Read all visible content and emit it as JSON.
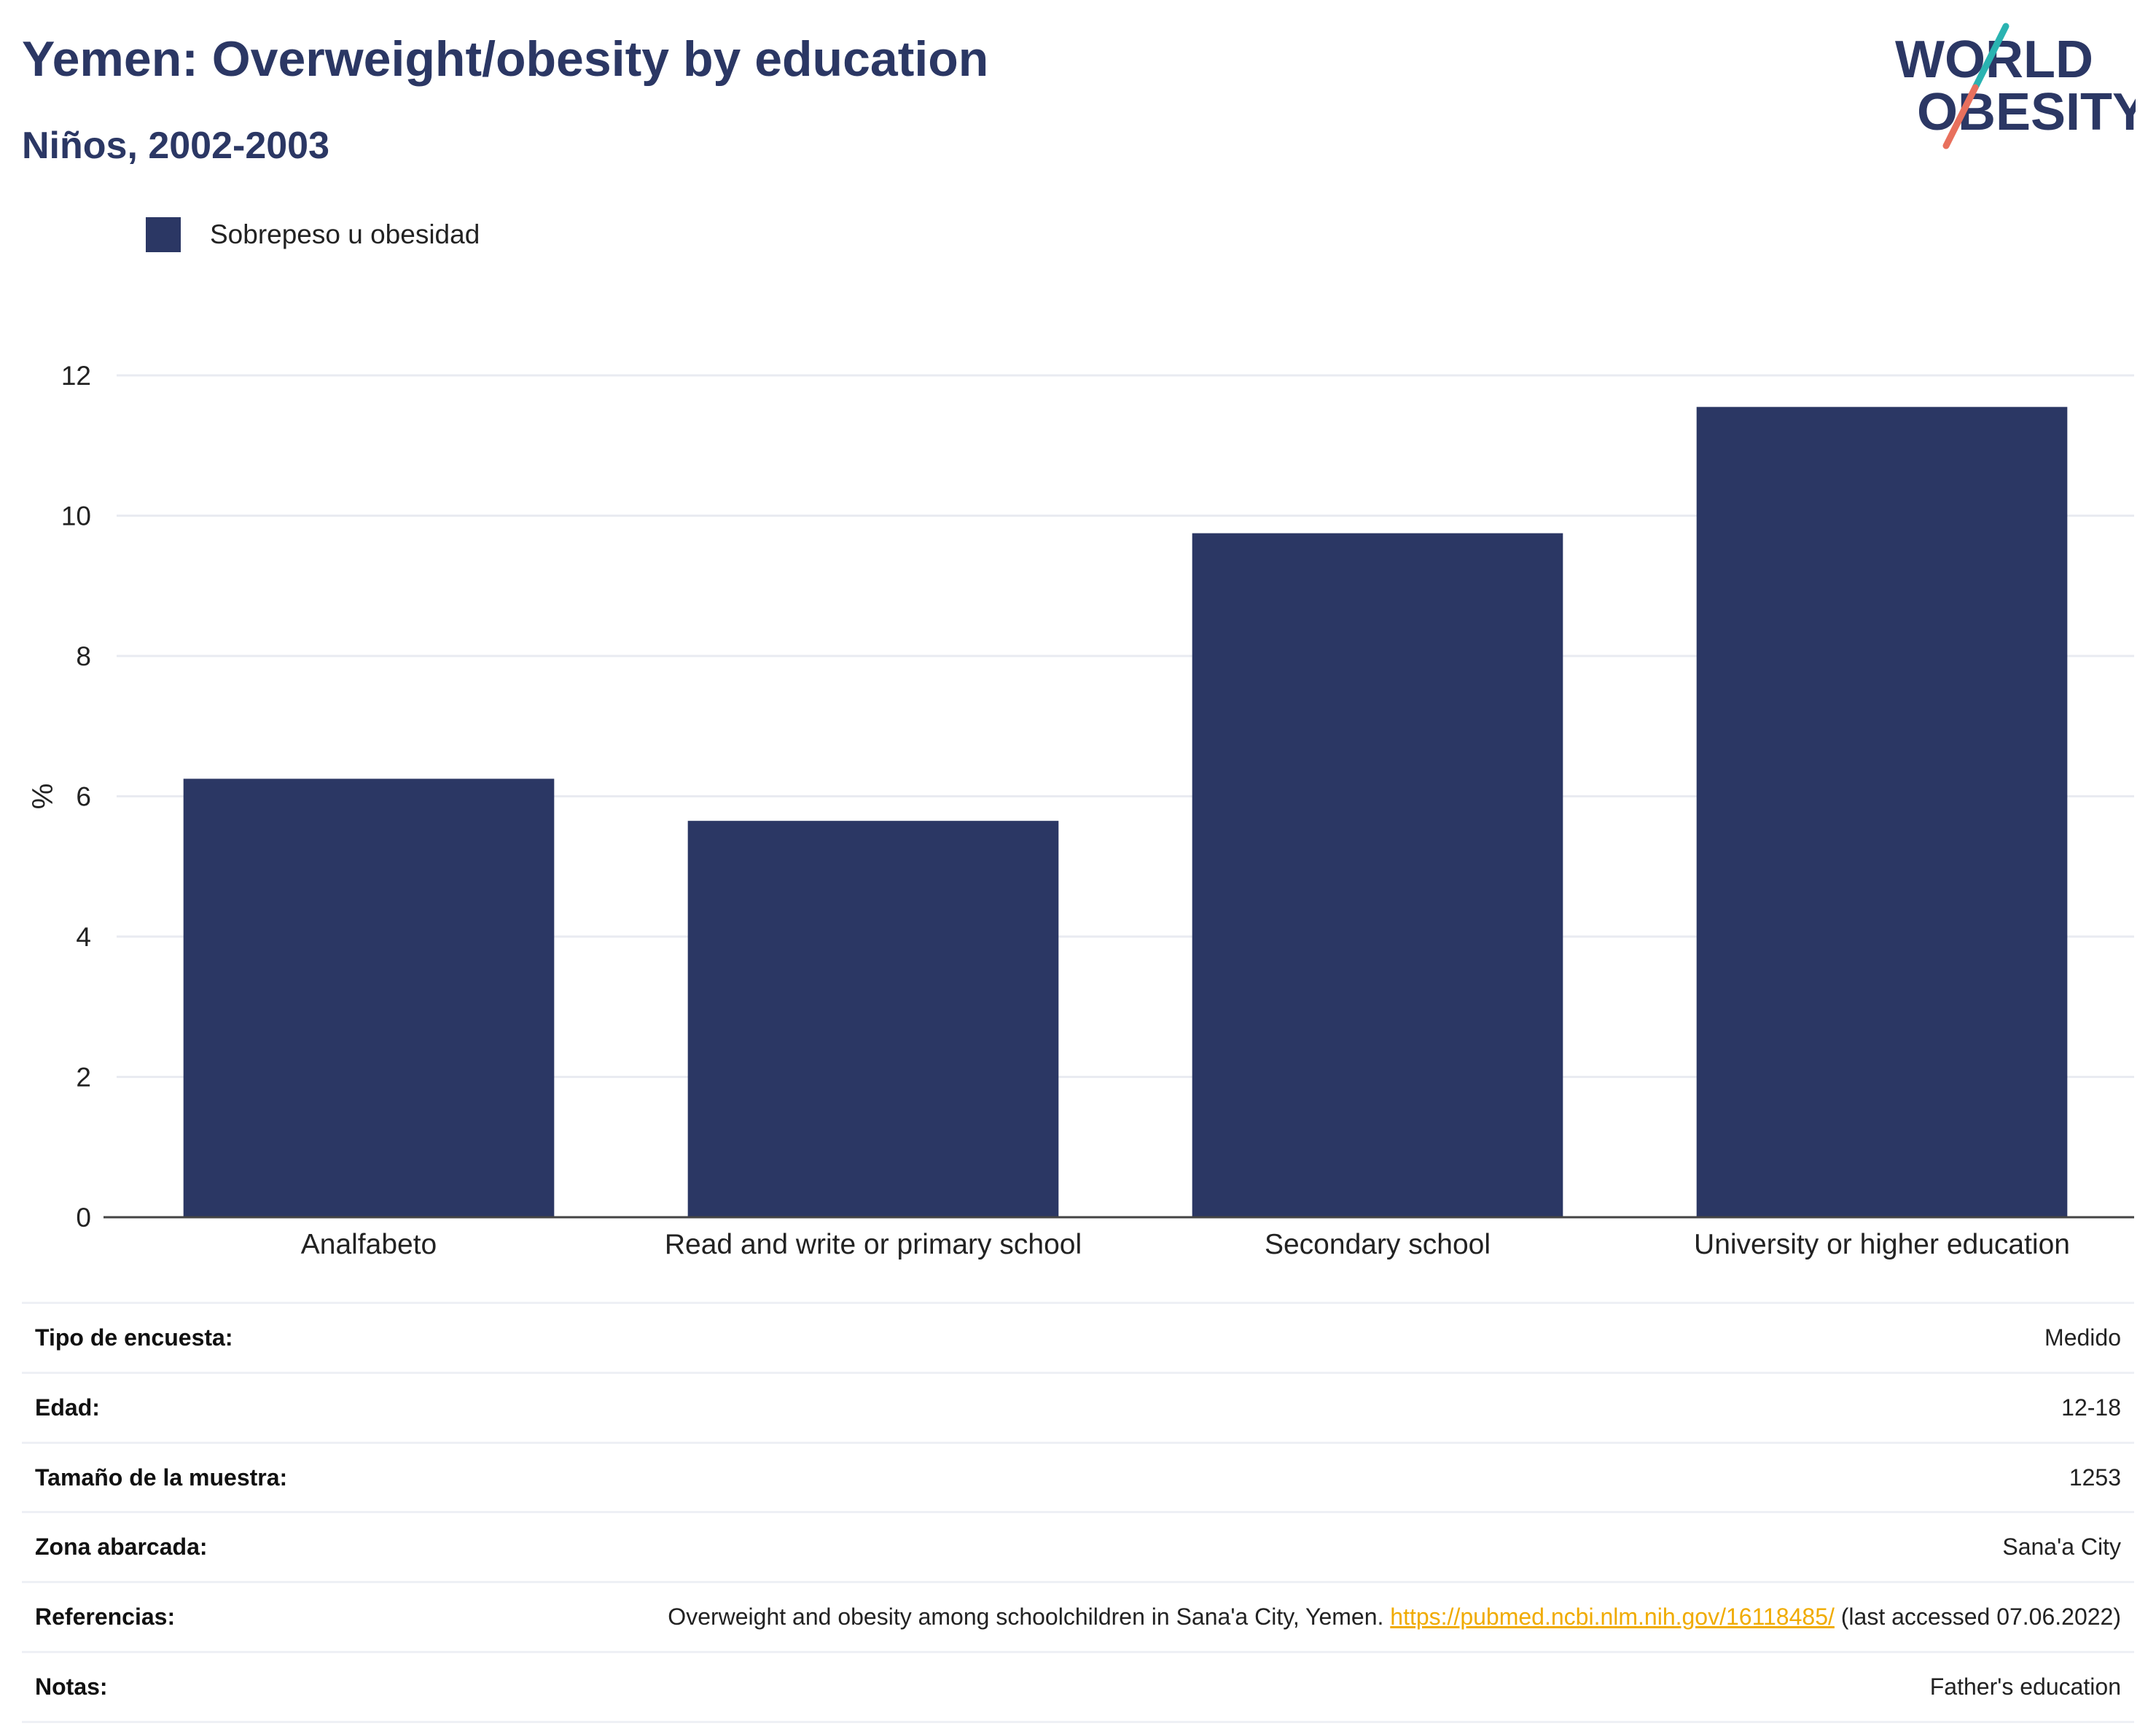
{
  "title": "Yemen: Overweight/obesity by education",
  "subtitle": "Niños, 2002-2003",
  "logo": {
    "line1": "WORLD",
    "line2": "OBESITY",
    "colors": [
      "#2b3764",
      "#2ab3b1",
      "#e8705d"
    ]
  },
  "legend": {
    "label": "Sobrepeso u obesidad",
    "color": "#2b3764"
  },
  "chart_data": {
    "type": "bar",
    "categories": [
      "Analfabeto",
      "Read and write or primary school",
      "Secondary school",
      "University or higher education"
    ],
    "series": [
      {
        "name": "Sobrepeso u obesidad",
        "values": [
          6.25,
          5.65,
          9.75,
          11.55
        ],
        "color": "#2b3764"
      }
    ],
    "ylabel": "%",
    "ylim": [
      0,
      12
    ],
    "yticks": [
      0,
      2,
      4,
      6,
      8,
      10,
      12
    ],
    "grid": true,
    "legend_position": "top-left"
  },
  "info": {
    "survey_type": {
      "label": "Tipo de encuesta:",
      "value": "Medido"
    },
    "age": {
      "label": "Edad:",
      "value": "12-18"
    },
    "sample_size": {
      "label": "Tamaño de la muestra:",
      "value": "1253"
    },
    "area": {
      "label": "Zona abarcada:",
      "value": "Sana'a City"
    },
    "references": {
      "label": "Referencias:",
      "text": "Overweight and obesity among schoolchildren in Sana'a City, Yemen.",
      "link": "https://pubmed.ncbi.nlm.nih.gov/16118485/",
      "suffix": "(last accessed 07.06.2022)"
    },
    "notes": {
      "label": "Notas:",
      "value": "Father's education"
    }
  }
}
